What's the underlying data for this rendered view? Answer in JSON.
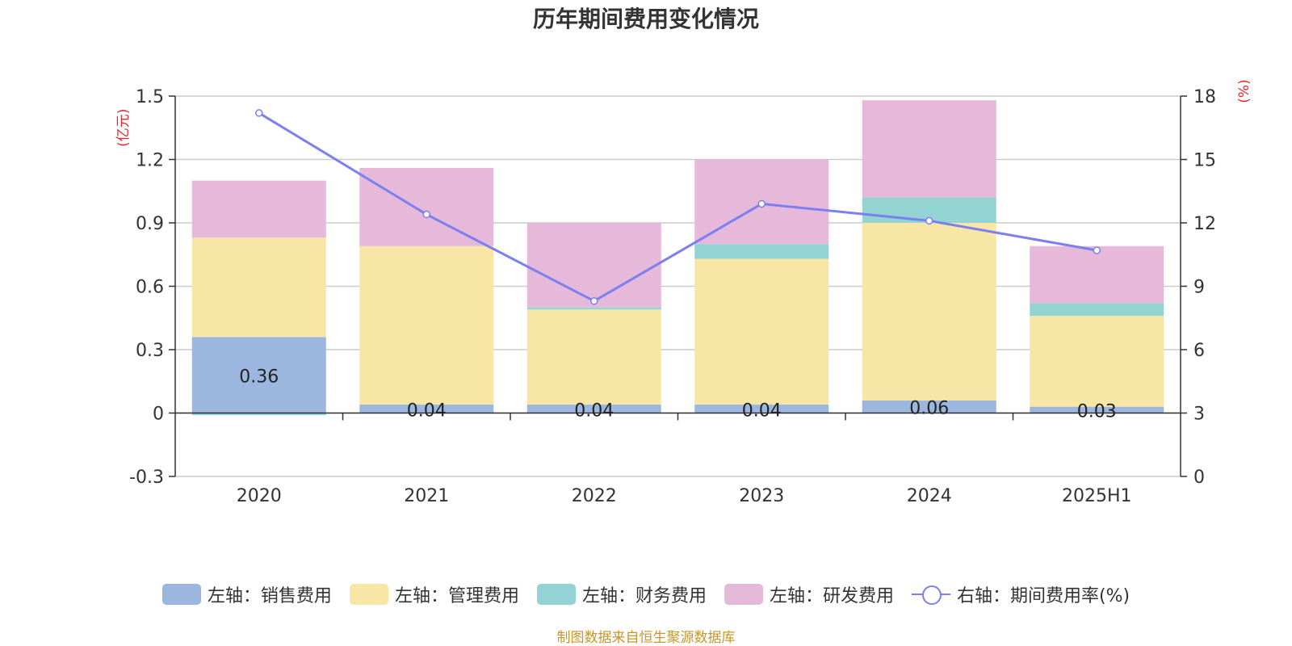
{
  "colors": {
    "sales": "#9bb7e0",
    "admin": "#f7e6a6",
    "finance": "#93d3d3",
    "rnd": "#e6b8d9",
    "rate": "#7b7ff0",
    "unit_label": "#e8262d",
    "source": "#c8962a"
  },
  "chart_data": {
    "type": "bar",
    "stacked": true,
    "title": "历年期间费用变化情况",
    "categories": [
      "2020",
      "2021",
      "2022",
      "2023",
      "2024",
      "2025H1"
    ],
    "y_left": {
      "unit": "(亿元)",
      "ylim": [
        -0.3,
        1.5
      ],
      "ticks": [
        "-0.3",
        "0",
        "0.3",
        "0.6",
        "0.9",
        "1.2",
        "1.5"
      ]
    },
    "y_right": {
      "unit": "(%)",
      "ylim": [
        0,
        18
      ],
      "ticks": [
        "0",
        "3",
        "6",
        "9",
        "12",
        "15",
        "18"
      ]
    },
    "series": [
      {
        "name": "左轴：销售费用",
        "axis": "left",
        "type": "bar",
        "color_key": "sales",
        "values": [
          0.36,
          0.04,
          0.04,
          0.04,
          0.06,
          0.03
        ],
        "labels": [
          "0.36",
          "0.04",
          "0.04",
          "0.04",
          "0.06",
          "0.03"
        ]
      },
      {
        "name": "左轴：管理费用",
        "axis": "left",
        "type": "bar",
        "color_key": "admin",
        "values": [
          0.47,
          0.75,
          0.45,
          0.69,
          0.84,
          0.43
        ]
      },
      {
        "name": "左轴：财务费用",
        "axis": "left",
        "type": "bar",
        "color_key": "finance",
        "values": [
          -0.01,
          0.0,
          0.01,
          0.07,
          0.12,
          0.06
        ]
      },
      {
        "name": "左轴：研发费用",
        "axis": "left",
        "type": "bar",
        "color_key": "rnd",
        "values": [
          0.27,
          0.37,
          0.4,
          0.4,
          0.46,
          0.27
        ]
      },
      {
        "name": "右轴：期间费用率(%)",
        "axis": "right",
        "type": "line",
        "color_key": "rate",
        "values": [
          17.2,
          12.4,
          8.3,
          12.9,
          12.1,
          10.7
        ]
      }
    ],
    "grid": true,
    "legend_position": "bottom"
  },
  "source_note": "制图数据来自恒生聚源数据库"
}
